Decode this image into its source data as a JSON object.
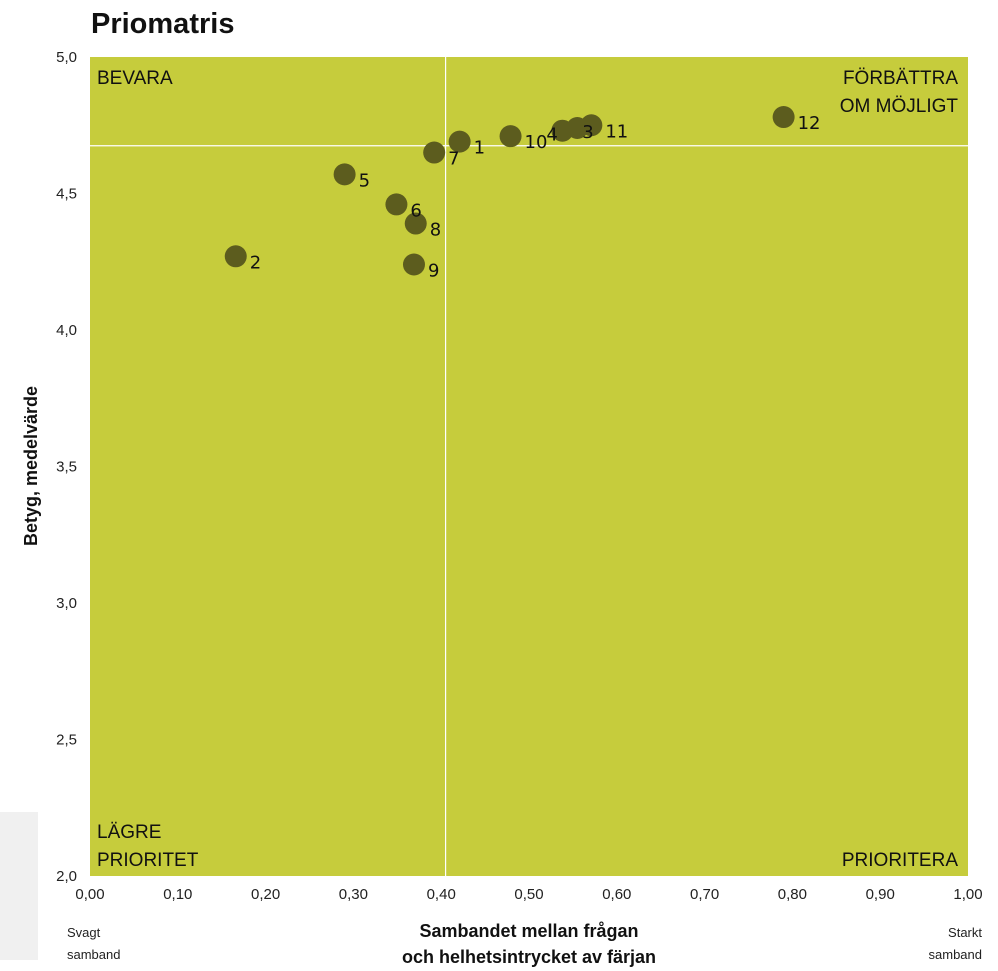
{
  "chart_data": {
    "type": "scatter",
    "title": "Priomatris",
    "xlabel_lines": [
      "Sambandet mellan frågan",
      "och helhetsintrycket av färjan"
    ],
    "ylabel": "Betyg, medelvärde",
    "x_edge_left": [
      "Svagt",
      "samband"
    ],
    "x_edge_right": [
      "Starkt",
      "samband"
    ],
    "xlim": [
      0,
      1
    ],
    "ylim": [
      2,
      5
    ],
    "x_ticks": [
      "0,00",
      "0,10",
      "0,20",
      "0,30",
      "0,40",
      "0,50",
      "0,60",
      "0,70",
      "0,80",
      "0,90",
      "1,00"
    ],
    "y_ticks": [
      "2,0",
      "2,5",
      "3,0",
      "3,5",
      "4,0",
      "4,5",
      "5,0"
    ],
    "reference_lines": {
      "x": 0.405,
      "y": 4.675
    },
    "quadrants": {
      "top_left": [
        "BEVARA"
      ],
      "top_right": [
        "FÖRBÄTTRA",
        "OM MÖJLIGT"
      ],
      "bottom_left": [
        "LÄGRE",
        "PRIORITET"
      ],
      "bottom_right": [
        "PRIORITERA"
      ]
    },
    "grid": false,
    "colors": {
      "plot_bg": "#c6cc3c",
      "point": "#5c5c1e",
      "ref_line": "#ffffff"
    },
    "points": [
      {
        "label": "1",
        "x": 0.421,
        "y": 4.69
      },
      {
        "label": "2",
        "x": 0.166,
        "y": 4.27
      },
      {
        "label": "3",
        "x": 0.555,
        "y": 4.74
      },
      {
        "label": "4",
        "x": 0.538,
        "y": 4.73
      },
      {
        "label": "5",
        "x": 0.29,
        "y": 4.57
      },
      {
        "label": "6",
        "x": 0.349,
        "y": 4.46
      },
      {
        "label": "7",
        "x": 0.392,
        "y": 4.65
      },
      {
        "label": "8",
        "x": 0.371,
        "y": 4.39
      },
      {
        "label": "9",
        "x": 0.369,
        "y": 4.24
      },
      {
        "label": "10",
        "x": 0.479,
        "y": 4.71
      },
      {
        "label": "11",
        "x": 0.571,
        "y": 4.75
      },
      {
        "label": "12",
        "x": 0.79,
        "y": 4.78
      }
    ]
  }
}
